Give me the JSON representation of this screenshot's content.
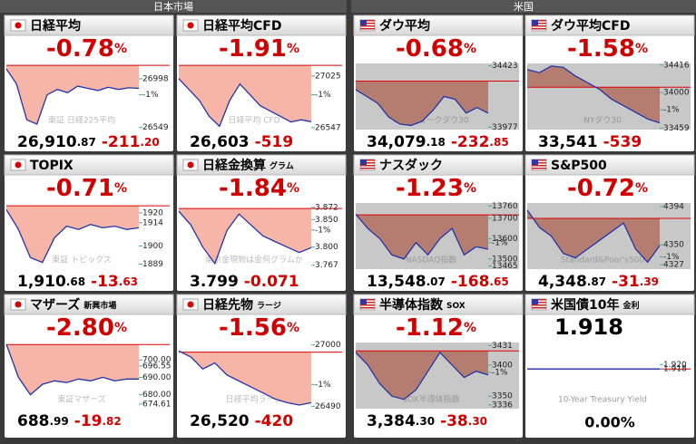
{
  "header": {
    "japan": "日本市場",
    "us": "米国"
  },
  "panels": [
    {
      "flag": "jp",
      "name": "日経平均",
      "percent": "-0.78",
      "percent_unit": "%",
      "price_int": "26,910",
      "price_dec": ".87",
      "change_int": "-211",
      "change_dec": ".20",
      "watermark": "東証 日経225平均",
      "prev": 27122,
      "ylim": [
        26530,
        27140
      ],
      "line": [
        27090,
        26950,
        26620,
        26580,
        26850,
        26900,
        26870,
        26930,
        26910,
        26890,
        26920,
        26900,
        26915,
        26910
      ],
      "labels": [
        26998,
        {
          "value": 26851,
          "label": "-1%"
        },
        26549
      ]
    },
    {
      "flag": "jp",
      "name": "日経平均CFD",
      "percent": "-1.91",
      "percent_unit": "%",
      "price_int": "26,603",
      "change_int": "-519",
      "watermark": "日経平均 CFD",
      "prev": 27122,
      "ylim": [
        26530,
        27140
      ],
      "line": [
        27000,
        26900,
        26800,
        26650,
        26560,
        26800,
        26950,
        26850,
        26750,
        26700,
        26650,
        26600,
        26620,
        26603
      ],
      "labels": [
        27025,
        {
          "value": 26851,
          "label": "-1%"
        },
        26547
      ]
    },
    {
      "flag": "us",
      "name": "ダウ平均",
      "percent": "-0.68",
      "percent_unit": "%",
      "price_int": "34,079",
      "price_dec": ".18",
      "change_int": "-232",
      "change_dec": ".85",
      "watermark": "ニューヨークダウ30",
      "prev": 34312,
      "ylim": [
        33960,
        34440
      ],
      "line": [
        34250,
        34200,
        34150,
        34050,
        34000,
        33990,
        34020,
        34100,
        34200,
        34180,
        34080,
        34120,
        34079
      ],
      "labels": [
        34423,
        33977
      ]
    },
    {
      "flag": "us",
      "name": "ダウ平均CFD",
      "percent": "-1.58",
      "percent_unit": "%",
      "price_int": "33,541",
      "change_int": "-539",
      "watermark": "NYダウ30",
      "prev": 34080,
      "ylim": [
        33440,
        34440
      ],
      "line": [
        34350,
        34300,
        34400,
        34380,
        34250,
        34150,
        34050,
        33900,
        33800,
        33700,
        33600,
        33541
      ],
      "labels": [
        34416,
        34000,
        {
          "value": 33739,
          "label": "-1%"
        },
        33459
      ]
    },
    {
      "flag": "jp",
      "name": "TOPIX",
      "percent": "-0.71",
      "percent_unit": "%",
      "price_int": "1,910",
      "price_dec": ".68",
      "change_int": "-13",
      "change_dec": ".63",
      "watermark": "東証 トピックス",
      "prev": 1924.3,
      "ylim": [
        1886,
        1926
      ],
      "line": [
        1922,
        1910,
        1893,
        1890,
        1905,
        1912,
        1910,
        1913,
        1911,
        1912,
        1910,
        1911
      ],
      "labels": [
        1920,
        1914,
        1900,
        1889
      ]
    },
    {
      "flag": "jp",
      "name": "日経金換算",
      "suffix": "グラム",
      "percent": "-1.84",
      "percent_unit": "%",
      "price_int": "3.799",
      "change_int": "-0.071",
      "watermark": "東京金現物は金何グラムか",
      "prev": 3.87,
      "ylim": [
        3.76,
        3.88
      ],
      "line": [
        3.865,
        3.84,
        3.8,
        3.77,
        3.83,
        3.86,
        3.84,
        3.82,
        3.81,
        3.8,
        3.79,
        3.799
      ],
      "labels": [
        3.872,
        {
          "value": 3.85,
          "label": "3.850"
        },
        {
          "value": 3.831,
          "label": "-1%"
        },
        {
          "value": 3.8,
          "label": "3.800"
        },
        3.767
      ]
    },
    {
      "flag": "us",
      "name": "ナスダック",
      "percent": "-1.23",
      "percent_unit": "%",
      "price_int": "13,548",
      "price_dec": ".07",
      "change_int": "-168",
      "change_dec": ".65",
      "watermark": "NASDAQ指数",
      "prev": 13716.7,
      "ylim": [
        13450,
        13775
      ],
      "line": [
        13720,
        13650,
        13600,
        13520,
        13500,
        13580,
        13520,
        13600,
        13650,
        13520,
        13560,
        13548
      ],
      "labels": [
        13760,
        13700,
        13600,
        {
          "value": 13580,
          "label": "-1%"
        },
        13500,
        13465
      ]
    },
    {
      "flag": "us",
      "name": "S&P500",
      "percent": "-0.72",
      "percent_unit": "%",
      "price_int": "4,348",
      "price_dec": ".87",
      "change_int": "-31",
      "change_dec": ".39",
      "watermark": "Standard&Poor's500",
      "prev": 4380.26,
      "ylim": [
        4322,
        4398
      ],
      "line": [
        4390,
        4370,
        4360,
        4340,
        4335,
        4345,
        4355,
        4365,
        4375,
        4345,
        4330,
        4349
      ],
      "labels": [
        4394,
        4350,
        {
          "value": 4336,
          "label": "-1%"
        },
        4327
      ]
    },
    {
      "flag": "jp",
      "name": "マザーズ",
      "suffix": "新興市場",
      "percent": "-2.80",
      "percent_unit": "%",
      "price_int": "688",
      "price_dec": ".99",
      "change_int": "-19",
      "change_dec": ".82",
      "watermark": "東証マザーズ",
      "prev": 708.81,
      "ylim": [
        672,
        710
      ],
      "line": [
        709,
        690,
        680,
        686,
        688,
        687,
        689,
        688,
        690,
        688,
        689,
        689
      ],
      "labels": [
        {
          "value": 700,
          "label": "700.00"
        },
        696.55,
        {
          "value": 690,
          "label": "690.00"
        },
        {
          "value": 680,
          "label": "680.00"
        },
        674.61
      ]
    },
    {
      "flag": "jp",
      "name": "日経先物",
      "suffix": "ラージ",
      "percent": "-1.56",
      "percent_unit": "%",
      "price_int": "26,520",
      "change_int": "-420",
      "watermark": "日経平均ラージ",
      "prev": 26940,
      "ylim": [
        26470,
        27020
      ],
      "line": [
        26950,
        26900,
        26800,
        26850,
        26750,
        26700,
        26650,
        26600,
        26550,
        26520,
        26500,
        26520
      ],
      "labels": [
        27000,
        {
          "value": 26671,
          "label": "-1%"
        },
        26490
      ]
    },
    {
      "flag": "us",
      "name": "半導体指数",
      "suffix": "SOX",
      "percent": "-1.12",
      "percent_unit": "%",
      "price_int": "3,384",
      "price_dec": ".30",
      "change_int": "-38",
      "change_dec": ".30",
      "watermark": "SOX半導体指数",
      "prev": 3422.6,
      "ylim": [
        3330,
        3436
      ],
      "line": [
        3420,
        3400,
        3370,
        3350,
        3345,
        3360,
        3390,
        3420,
        3400,
        3380,
        3390,
        3384
      ],
      "labels": [
        3431,
        3400,
        {
          "value": 3388,
          "label": "-1%"
        },
        3350,
        3336
      ]
    },
    {
      "flag": "us",
      "name": "米国債10年",
      "suffix": "金利",
      "big": "1.918",
      "bottom": "0.00%",
      "watermark": "10-Year Treasury Yield",
      "prev": 1.918,
      "ylim": [
        1.9,
        1.93
      ],
      "line": [
        1.918,
        1.918
      ],
      "labels": [
        {
          "value": 1.92,
          "label": "1.920"
        },
        1.918
      ]
    }
  ]
}
